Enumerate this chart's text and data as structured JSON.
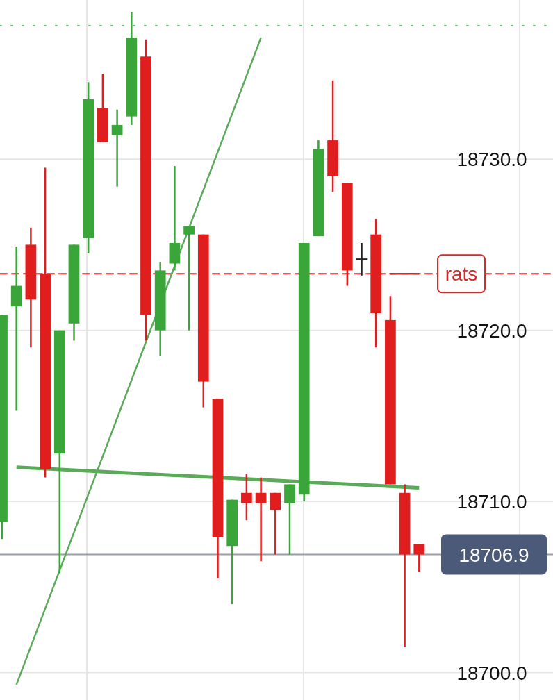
{
  "chart_data": {
    "type": "candlestick",
    "categories": [
      null,
      null,
      null,
      null,
      null,
      null,
      null,
      null,
      null,
      null,
      null,
      null,
      null,
      null,
      null,
      null,
      null,
      null,
      null,
      null,
      null,
      null,
      null,
      null,
      null,
      null,
      null,
      null,
      null,
      null
    ],
    "ohlc": [
      [
        18708.8,
        18720.9,
        18707.8,
        18720.9
      ],
      [
        18721.4,
        18724.9,
        18715.3,
        18722.6
      ],
      [
        18725.0,
        18726.0,
        18719.0,
        18721.8
      ],
      [
        18723.3,
        18729.5,
        18711.4,
        18711.9
      ],
      [
        18712.8,
        18720.0,
        18705.8,
        18720.0
      ],
      [
        18720.4,
        18725.0,
        18719.4,
        18725.0
      ],
      [
        18725.4,
        18734.5,
        18724.5,
        18733.5
      ],
      [
        18733.0,
        18735.0,
        18731.0,
        18731.0
      ],
      [
        18731.4,
        18732.9,
        18728.4,
        18732.0
      ],
      [
        18732.5,
        18738.6,
        18732.0,
        18737.1
      ],
      [
        18736.0,
        18737.0,
        18719.4,
        18720.9
      ],
      [
        18720.0,
        18724.0,
        18718.5,
        18723.5
      ],
      [
        18723.9,
        18729.6,
        18723.5,
        18725.1
      ],
      [
        18725.6,
        18726.1,
        18720.0,
        18726.1
      ],
      [
        18725.6,
        18725.6,
        18715.5,
        18717.0
      ],
      [
        18716.0,
        18716.0,
        18705.5,
        18707.9
      ],
      [
        18707.4,
        18710.1,
        18704.0,
        18710.1
      ],
      [
        18710.5,
        18711.6,
        18708.9,
        18709.9
      ],
      [
        18710.5,
        18711.4,
        18706.5,
        18709.9
      ],
      [
        18710.5,
        18710.5,
        18706.9,
        18709.5
      ],
      [
        18709.9,
        18711.0,
        18706.9,
        18711.0
      ],
      [
        18710.4,
        18725.1,
        18710.0,
        18725.1
      ],
      [
        18725.5,
        18731.1,
        18725.5,
        18730.6
      ],
      [
        18731.1,
        18734.6,
        18728.1,
        18729.0
      ],
      [
        18728.6,
        18728.6,
        18722.6,
        18723.5
      ],
      [
        18724.2,
        18725.1,
        18723.2,
        18724.2
      ],
      [
        18725.6,
        18726.5,
        18719.0,
        18721.0
      ],
      [
        18720.6,
        18722.0,
        18711.0,
        18711.0
      ],
      [
        18710.5,
        18711.0,
        18701.5,
        18706.9
      ],
      [
        18707.5,
        18707.5,
        18705.9,
        18706.9
      ]
    ],
    "colors": [
      "#3aa63a",
      "#3aa63a",
      "#e01e1e",
      "#e01e1e",
      "#3aa63a",
      "#3aa63a",
      "#3aa63a",
      "#e01e1e",
      "#3aa63a",
      "#3aa63a",
      "#e01e1e",
      "#3aa63a",
      "#3aa63a",
      "#3aa63a",
      "#e01e1e",
      "#e01e1e",
      "#3aa63a",
      "#e01e1e",
      "#e01e1e",
      "#e01e1e",
      "#3aa63a",
      "#3aa63a",
      "#3aa63a",
      "#e01e1e",
      "#e01e1e",
      "#222222",
      "#e01e1e",
      "#e01e1e",
      "#e01e1e",
      "#e01e1e"
    ],
    "series": [
      {
        "type": "line",
        "color": "#5aaa5a",
        "values": [
          null,
          18699.3,
          null,
          null,
          null,
          null,
          null,
          null,
          null,
          null,
          null,
          null,
          null,
          null,
          null,
          null,
          null,
          null,
          18737.1,
          null,
          null,
          null,
          null,
          null,
          null,
          null,
          null,
          null,
          null,
          null
        ]
      },
      {
        "type": "line",
        "color": "#5aaa5a",
        "values": [
          null,
          18712.0,
          null,
          null,
          null,
          null,
          null,
          null,
          null,
          null,
          null,
          null,
          null,
          null,
          null,
          null,
          null,
          null,
          null,
          null,
          null,
          null,
          null,
          null,
          null,
          null,
          null,
          null,
          null,
          18710.8
        ]
      },
      {
        "type": "line",
        "color": "#d42a2a",
        "values": [
          null,
          null,
          null,
          null,
          null,
          null,
          null,
          null,
          null,
          null,
          null,
          null,
          null,
          null,
          null,
          null,
          null,
          null,
          null,
          null,
          null,
          null,
          null,
          null,
          null,
          null,
          null,
          18723.3,
          null,
          18723.3
        ]
      }
    ],
    "ylim": [
      18698.4,
      18739.3
    ],
    "yticks": [
      {
        "value": 18700,
        "label": "18700.0"
      },
      {
        "value": 18710,
        "label": "18710.0"
      },
      {
        "value": 18720,
        "label": "18720.0"
      },
      {
        "value": 18730,
        "label": "18730.0"
      }
    ],
    "tick_labels": "y",
    "grid": true,
    "ref_lines": [
      {
        "axis": "y",
        "value": 18737.8,
        "color": "#6dbb6d",
        "line_style": "dotted"
      },
      {
        "axis": "y",
        "value": 18723.3,
        "label": "rats",
        "color": "#d42a2a",
        "line_style": "dashed"
      },
      {
        "axis": "y",
        "value": 18706.9,
        "label": "18706.9",
        "color": "#9aa0a6",
        "line_style": "solid"
      }
    ]
  }
}
